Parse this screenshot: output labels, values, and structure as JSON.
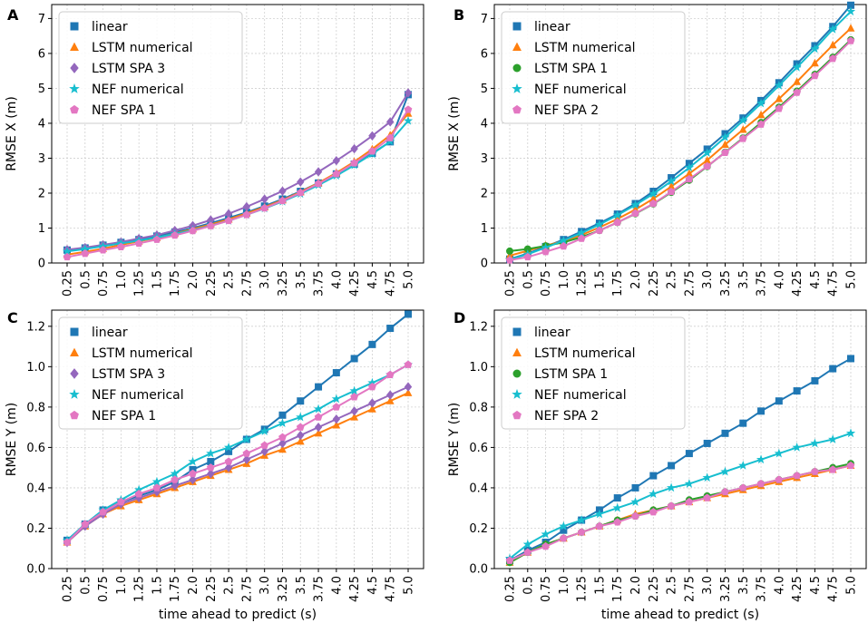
{
  "figure": {
    "xlabel": "time ahead to predict (s)"
  },
  "series_styles": {
    "linear": {
      "color": "#1f77b4",
      "marker": "square"
    },
    "LSTM numerical": {
      "color": "#ff7f0e",
      "marker": "triangle"
    },
    "LSTM SPA 3": {
      "color": "#9467bd",
      "marker": "diamond"
    },
    "LSTM SPA 1": {
      "color": "#2ca02c",
      "marker": "circle"
    },
    "NEF numerical": {
      "color": "#17becf",
      "marker": "star"
    },
    "NEF SPA 1": {
      "color": "#e377c2",
      "marker": "pentagon"
    },
    "NEF SPA 2": {
      "color": "#e377c2",
      "marker": "pentagon"
    }
  },
  "chart_data": [
    {
      "panel": "A",
      "type": "line",
      "xlabel": "",
      "ylabel": "RMSE X (m)",
      "ylim": [
        0,
        7.4
      ],
      "yticks": [
        "0",
        "1",
        "2",
        "3",
        "4",
        "5",
        "6",
        "7"
      ],
      "ytick_values": [
        0,
        1,
        2,
        3,
        4,
        5,
        6,
        7
      ],
      "grid": true,
      "legend_position": "top-left",
      "categories": [
        "0.25",
        "0.5",
        "0.75",
        "1.0",
        "1.25",
        "1.5",
        "1.75",
        "2.0",
        "2.25",
        "2.5",
        "2.75",
        "3.0",
        "3.25",
        "3.5",
        "3.75",
        "4.0",
        "4.25",
        "4.5",
        "4.75",
        "5.0"
      ],
      "series": [
        {
          "name": "linear",
          "values": [
            0.37,
            0.43,
            0.51,
            0.59,
            0.67,
            0.77,
            0.88,
            1.0,
            1.14,
            1.29,
            1.45,
            1.63,
            1.83,
            2.05,
            2.29,
            2.55,
            2.83,
            3.14,
            3.47,
            4.82
          ]
        },
        {
          "name": "LSTM numerical",
          "values": [
            0.24,
            0.32,
            0.41,
            0.52,
            0.62,
            0.72,
            0.84,
            0.97,
            1.1,
            1.25,
            1.42,
            1.6,
            1.8,
            2.03,
            2.29,
            2.58,
            2.9,
            3.26,
            3.66,
            4.28
          ]
        },
        {
          "name": "LSTM SPA 3",
          "values": [
            0.38,
            0.44,
            0.52,
            0.6,
            0.7,
            0.8,
            0.93,
            1.07,
            1.23,
            1.41,
            1.61,
            1.83,
            2.06,
            2.32,
            2.61,
            2.93,
            3.27,
            3.64,
            4.04,
            4.87
          ]
        },
        {
          "name": "NEF numerical",
          "values": [
            0.33,
            0.4,
            0.48,
            0.56,
            0.64,
            0.73,
            0.83,
            0.94,
            1.07,
            1.21,
            1.38,
            1.56,
            1.76,
            1.98,
            2.23,
            2.5,
            2.8,
            3.12,
            3.48,
            4.07
          ]
        },
        {
          "name": "NEF SPA 1",
          "values": [
            0.17,
            0.27,
            0.37,
            0.46,
            0.56,
            0.67,
            0.79,
            0.92,
            1.06,
            1.21,
            1.38,
            1.57,
            1.78,
            2.01,
            2.27,
            2.55,
            2.86,
            3.2,
            3.58,
            4.39
          ]
        }
      ]
    },
    {
      "panel": "B",
      "type": "line",
      "xlabel": "",
      "ylabel": "RMSE X (m)",
      "ylim": [
        0,
        7.4
      ],
      "yticks": [
        "0",
        "1",
        "2",
        "3",
        "4",
        "5",
        "6",
        "7"
      ],
      "ytick_values": [
        0,
        1,
        2,
        3,
        4,
        5,
        6,
        7
      ],
      "grid": true,
      "legend_position": "top-left",
      "categories": [
        "0.25",
        "0.5",
        "0.75",
        "1.0",
        "1.25",
        "1.5",
        "1.75",
        "2.0",
        "2.25",
        "2.5",
        "2.75",
        "3.0",
        "3.25",
        "3.5",
        "3.75",
        "4.0",
        "4.25",
        "4.5",
        "4.75",
        "5.0"
      ],
      "series": [
        {
          "name": "linear",
          "values": [
            0.11,
            0.27,
            0.47,
            0.67,
            0.9,
            1.14,
            1.4,
            1.7,
            2.05,
            2.44,
            2.85,
            3.26,
            3.7,
            4.15,
            4.65,
            5.16,
            5.7,
            6.22,
            6.77,
            7.38
          ]
        },
        {
          "name": "LSTM numerical",
          "values": [
            0.21,
            0.35,
            0.5,
            0.62,
            0.8,
            1.02,
            1.26,
            1.53,
            1.84,
            2.19,
            2.56,
            2.94,
            3.39,
            3.82,
            4.24,
            4.7,
            5.19,
            5.72,
            6.24,
            6.72
          ]
        },
        {
          "name": "LSTM SPA 1",
          "values": [
            0.34,
            0.4,
            0.49,
            0.59,
            0.74,
            0.93,
            1.16,
            1.41,
            1.69,
            2.02,
            2.37,
            2.76,
            3.17,
            3.58,
            4.02,
            4.46,
            4.92,
            5.4,
            5.89,
            6.39
          ]
        },
        {
          "name": "NEF numerical",
          "values": [
            0.1,
            0.25,
            0.44,
            0.64,
            0.86,
            1.1,
            1.37,
            1.66,
            1.98,
            2.34,
            2.73,
            3.15,
            3.6,
            4.08,
            4.57,
            5.08,
            5.6,
            6.13,
            6.69,
            7.2
          ]
        },
        {
          "name": "NEF SPA 2",
          "values": [
            0.08,
            0.17,
            0.32,
            0.48,
            0.7,
            0.93,
            1.16,
            1.42,
            1.7,
            2.04,
            2.4,
            2.77,
            3.16,
            3.56,
            3.97,
            4.42,
            4.88,
            5.36,
            5.85,
            6.36
          ]
        }
      ]
    },
    {
      "panel": "C",
      "type": "line",
      "xlabel": "time ahead to predict (s)",
      "ylabel": "RMSE Y (m)",
      "ylim": [
        0,
        1.28
      ],
      "yticks": [
        "0.0",
        "0.2",
        "0.4",
        "0.6",
        "0.8",
        "1.0",
        "1.2"
      ],
      "ytick_values": [
        0,
        0.2,
        0.4,
        0.6,
        0.8,
        1.0,
        1.2
      ],
      "grid": true,
      "legend_position": "top-left",
      "categories": [
        "0.25",
        "0.5",
        "0.75",
        "1.0",
        "1.25",
        "1.5",
        "1.75",
        "2.0",
        "2.25",
        "2.5",
        "2.75",
        "3.0",
        "3.25",
        "3.5",
        "3.75",
        "4.0",
        "4.25",
        "4.5",
        "4.75",
        "5.0"
      ],
      "series": [
        {
          "name": "linear",
          "values": [
            0.14,
            0.22,
            0.29,
            0.33,
            0.36,
            0.39,
            0.43,
            0.49,
            0.53,
            0.58,
            0.64,
            0.69,
            0.76,
            0.83,
            0.9,
            0.97,
            1.04,
            1.11,
            1.19,
            1.26
          ]
        },
        {
          "name": "LSTM numerical",
          "values": [
            0.13,
            0.21,
            0.27,
            0.31,
            0.34,
            0.37,
            0.4,
            0.43,
            0.46,
            0.49,
            0.52,
            0.56,
            0.59,
            0.63,
            0.67,
            0.71,
            0.75,
            0.79,
            0.83,
            0.87
          ]
        },
        {
          "name": "LSTM SPA 3",
          "values": [
            0.13,
            0.21,
            0.27,
            0.32,
            0.35,
            0.38,
            0.41,
            0.44,
            0.47,
            0.5,
            0.54,
            0.58,
            0.62,
            0.66,
            0.7,
            0.74,
            0.78,
            0.82,
            0.86,
            0.9
          ]
        },
        {
          "name": "NEF numerical",
          "values": [
            0.14,
            0.22,
            0.29,
            0.34,
            0.39,
            0.43,
            0.47,
            0.53,
            0.57,
            0.6,
            0.64,
            0.68,
            0.72,
            0.75,
            0.79,
            0.84,
            0.88,
            0.92,
            0.96,
            1.01
          ]
        },
        {
          "name": "NEF SPA 1",
          "values": [
            0.13,
            0.22,
            0.28,
            0.33,
            0.37,
            0.4,
            0.44,
            0.47,
            0.5,
            0.53,
            0.57,
            0.61,
            0.65,
            0.7,
            0.75,
            0.8,
            0.85,
            0.9,
            0.96,
            1.01
          ]
        }
      ]
    },
    {
      "panel": "D",
      "type": "line",
      "xlabel": "time ahead to predict (s)",
      "ylabel": "RMSE Y (m)",
      "ylim": [
        0,
        1.28
      ],
      "yticks": [
        "0.0",
        "0.2",
        "0.4",
        "0.6",
        "0.8",
        "1.0",
        "1.2"
      ],
      "ytick_values": [
        0,
        0.2,
        0.4,
        0.6,
        0.8,
        1.0,
        1.2
      ],
      "grid": true,
      "legend_position": "top-left",
      "categories": [
        "0.25",
        "0.5",
        "0.75",
        "1.0",
        "1.25",
        "1.5",
        "1.75",
        "2.0",
        "2.25",
        "2.5",
        "2.75",
        "3.0",
        "3.25",
        "3.5",
        "3.75",
        "4.0",
        "4.25",
        "4.5",
        "4.75",
        "5.0"
      ],
      "series": [
        {
          "name": "linear",
          "values": [
            0.04,
            0.09,
            0.13,
            0.19,
            0.24,
            0.29,
            0.35,
            0.4,
            0.46,
            0.51,
            0.57,
            0.62,
            0.67,
            0.72,
            0.78,
            0.83,
            0.88,
            0.93,
            0.99,
            1.04
          ]
        },
        {
          "name": "LSTM numerical",
          "values": [
            0.03,
            0.08,
            0.12,
            0.15,
            0.18,
            0.21,
            0.24,
            0.27,
            0.29,
            0.31,
            0.33,
            0.35,
            0.37,
            0.39,
            0.41,
            0.43,
            0.45,
            0.47,
            0.49,
            0.51
          ]
        },
        {
          "name": "LSTM SPA 1",
          "values": [
            0.03,
            0.08,
            0.12,
            0.15,
            0.18,
            0.21,
            0.24,
            0.26,
            0.29,
            0.31,
            0.34,
            0.36,
            0.38,
            0.4,
            0.42,
            0.44,
            0.46,
            0.48,
            0.5,
            0.52
          ]
        },
        {
          "name": "NEF numerical",
          "values": [
            0.05,
            0.12,
            0.17,
            0.21,
            0.24,
            0.27,
            0.3,
            0.33,
            0.37,
            0.4,
            0.42,
            0.45,
            0.48,
            0.51,
            0.54,
            0.57,
            0.6,
            0.62,
            0.64,
            0.67
          ]
        },
        {
          "name": "NEF SPA 2",
          "values": [
            0.04,
            0.08,
            0.11,
            0.15,
            0.18,
            0.21,
            0.23,
            0.26,
            0.28,
            0.31,
            0.33,
            0.35,
            0.38,
            0.4,
            0.42,
            0.44,
            0.46,
            0.48,
            0.49,
            0.51
          ]
        }
      ]
    }
  ]
}
